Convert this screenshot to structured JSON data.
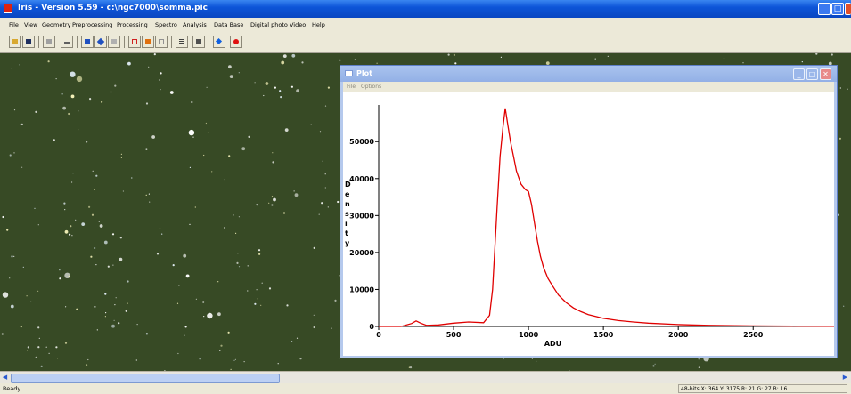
{
  "window": {
    "title": "Iris - Version 5.59 - c:\\ngc7000\\somma.pic",
    "minimize": "_",
    "maximize": "□",
    "close": "✕"
  },
  "menu": [
    "File",
    "View",
    "Geometry",
    "Preprocessing",
    "Processing",
    "Spectro",
    "Analysis",
    "Data Base",
    "Digital photo",
    "Video",
    "Help"
  ],
  "toolbar": {
    "icons": [
      "open-icon",
      "save-icon",
      "undo-icon",
      "compare-icon",
      "grid-icon",
      "move-icon",
      "lock-icon",
      "red-frame-icon",
      "orange-frame-icon",
      "gray-frame-icon",
      "list-icon",
      "camera-icon",
      "blue-diamond-icon",
      "red-dot-icon"
    ]
  },
  "plot_window": {
    "title": "Plot",
    "menu": [
      "File",
      "Options"
    ]
  },
  "chart_data": {
    "type": "line",
    "title": "",
    "xlabel": "ADU",
    "ylabel": "Density",
    "xlim": [
      0,
      3040
    ],
    "ylim": [
      0,
      58000
    ],
    "x_ticks": [
      "0",
      "500",
      "1000",
      "1500",
      "2000",
      "2500"
    ],
    "x_tick_values": [
      0,
      500,
      1000,
      1500,
      2000,
      2500
    ],
    "y_ticks": [
      "0",
      "10000",
      "20000",
      "30000",
      "40000",
      "50000"
    ],
    "y_tick_values": [
      0,
      10000,
      20000,
      30000,
      40000,
      50000
    ],
    "color": "#e00000",
    "series": [
      {
        "x": [
          0,
          150,
          220,
          250,
          280,
          320,
          400,
          500,
          600,
          700,
          740,
          760,
          790,
          810,
          830,
          845,
          860,
          880,
          900,
          920,
          950,
          980,
          1000,
          1020,
          1040,
          1060,
          1080,
          1100,
          1130,
          1160,
          1200,
          1250,
          1300,
          1350,
          1400,
          1500,
          1600,
          1700,
          1800,
          2000,
          2200,
          2500,
          2800,
          3040
        ],
        "y": [
          0,
          0,
          800,
          1500,
          900,
          300,
          400,
          900,
          1200,
          1000,
          3000,
          10000,
          32000,
          46000,
          54000,
          59000,
          55000,
          50000,
          46000,
          42000,
          38500,
          37000,
          36500,
          33000,
          28000,
          23000,
          19000,
          16000,
          13000,
          11000,
          8500,
          6500,
          5000,
          4000,
          3200,
          2200,
          1600,
          1200,
          900,
          500,
          300,
          150,
          80,
          50
        ]
      }
    ]
  },
  "status": {
    "left": "Ready",
    "right": "48-bits X: 364  Y: 3175  R: 21  G: 27  B: 16"
  }
}
